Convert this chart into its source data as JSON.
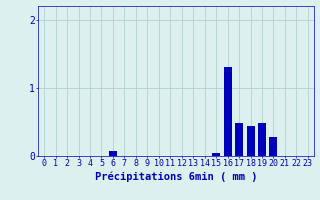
{
  "hours": [
    0,
    1,
    2,
    3,
    4,
    5,
    6,
    7,
    8,
    9,
    10,
    11,
    12,
    13,
    14,
    15,
    16,
    17,
    18,
    19,
    20,
    21,
    22,
    23
  ],
  "values": [
    0,
    0,
    0,
    0,
    0,
    0,
    0.08,
    0,
    0,
    0,
    0,
    0,
    0,
    0,
    0,
    0.04,
    1.3,
    0.48,
    0.44,
    0.48,
    0.28,
    0,
    0,
    0
  ],
  "bar_color": "#0000bb",
  "background_color": "#ddf0f0",
  "grid_color": "#aacccc",
  "axis_color": "#0000bb",
  "xlabel": "Précipitations 6min ( mm )",
  "xlabel_fontsize": 7.5,
  "tick_fontsize": 6,
  "ytick_fontsize": 7,
  "yticks": [
    0,
    1,
    2
  ],
  "ylim": [
    0,
    2.2
  ],
  "xlim": [
    -0.5,
    23.5
  ]
}
